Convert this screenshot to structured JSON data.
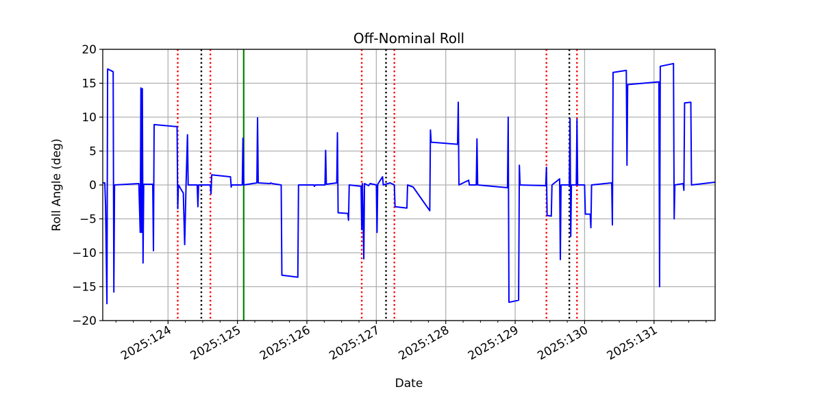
{
  "chart_data": {
    "type": "line",
    "title": "Off-Nominal Roll",
    "xlabel": "Date",
    "ylabel": "Roll Angle (deg)",
    "xlim": [
      123.06,
      131.88
    ],
    "ylim": [
      -20,
      20
    ],
    "grid": true,
    "x_ticks": [
      {
        "value": 124,
        "label": "2025:124"
      },
      {
        "value": 125,
        "label": "2025:125"
      },
      {
        "value": 126,
        "label": "2025:126"
      },
      {
        "value": 127,
        "label": "2025:127"
      },
      {
        "value": 128,
        "label": "2025:128"
      },
      {
        "value": 129,
        "label": "2025:129"
      },
      {
        "value": 130,
        "label": "2025:130"
      },
      {
        "value": 131,
        "label": "2025:131"
      }
    ],
    "y_ticks": [
      -20,
      -15,
      -10,
      -5,
      0,
      5,
      10,
      15,
      20
    ],
    "vertical_lines": [
      {
        "x": 124.14,
        "color": "#ff0000",
        "style": "dotted"
      },
      {
        "x": 124.48,
        "color": "#000000",
        "style": "dotted"
      },
      {
        "x": 124.61,
        "color": "#ff0000",
        "style": "dotted"
      },
      {
        "x": 125.09,
        "color": "#008000",
        "style": "solid"
      },
      {
        "x": 126.79,
        "color": "#ff0000",
        "style": "dotted"
      },
      {
        "x": 127.14,
        "color": "#000000",
        "style": "dotted"
      },
      {
        "x": 127.26,
        "color": "#ff0000",
        "style": "dotted"
      },
      {
        "x": 129.45,
        "color": "#ff0000",
        "style": "dotted"
      },
      {
        "x": 129.78,
        "color": "#000000",
        "style": "dotted"
      },
      {
        "x": 129.89,
        "color": "#ff0000",
        "style": "dotted"
      }
    ],
    "series": [
      {
        "color": "#0000ff",
        "points": [
          [
            123.06,
            0.3
          ],
          [
            123.09,
            0.3
          ],
          [
            123.1,
            -3
          ],
          [
            123.12,
            -17.5
          ],
          [
            123.13,
            17.1
          ],
          [
            123.21,
            16.7
          ],
          [
            123.22,
            -15.8
          ],
          [
            123.23,
            0
          ],
          [
            123.58,
            0.2
          ],
          [
            123.6,
            -7
          ],
          [
            123.61,
            14.3
          ],
          [
            123.62,
            -7
          ],
          [
            123.63,
            14.2
          ],
          [
            123.64,
            -11.5
          ],
          [
            123.65,
            0.1
          ],
          [
            123.78,
            0.1
          ],
          [
            123.79,
            -9.7
          ],
          [
            123.8,
            8.9
          ],
          [
            124.13,
            8.6
          ],
          [
            124.14,
            -3.5
          ],
          [
            124.15,
            0
          ],
          [
            124.22,
            -1.2
          ],
          [
            124.24,
            -8.8
          ],
          [
            124.26,
            0
          ],
          [
            124.28,
            7.4
          ],
          [
            124.29,
            0
          ],
          [
            124.42,
            0
          ],
          [
            124.43,
            -3.2
          ],
          [
            124.44,
            0
          ],
          [
            124.61,
            0
          ],
          [
            124.62,
            -1.3
          ],
          [
            124.63,
            1.5
          ],
          [
            124.9,
            1.2
          ],
          [
            124.91,
            -0.3
          ],
          [
            124.92,
            0
          ],
          [
            125.07,
            0
          ],
          [
            125.08,
            6.9
          ],
          [
            125.09,
            0
          ],
          [
            125.28,
            0.3
          ],
          [
            125.29,
            9.9
          ],
          [
            125.3,
            0.3
          ],
          [
            125.47,
            0.2
          ],
          [
            125.48,
            0.3
          ],
          [
            125.5,
            0.2
          ],
          [
            125.63,
            0
          ],
          [
            125.64,
            -13.3
          ],
          [
            125.87,
            -13.6
          ],
          [
            125.88,
            0
          ],
          [
            126.1,
            0
          ],
          [
            126.11,
            -0.2
          ],
          [
            126.12,
            0
          ],
          [
            126.26,
            0
          ],
          [
            126.27,
            5.1
          ],
          [
            126.28,
            0.1
          ],
          [
            126.43,
            0.3
          ],
          [
            126.44,
            7.7
          ],
          [
            126.45,
            -4.1
          ],
          [
            126.59,
            -4.2
          ],
          [
            126.6,
            -5.2
          ],
          [
            126.61,
            0
          ],
          [
            126.78,
            -0.2
          ],
          [
            126.79,
            -6.6
          ],
          [
            126.8,
            0.2
          ],
          [
            126.82,
            -10.9
          ],
          [
            126.83,
            0.2
          ],
          [
            126.89,
            -0.1
          ],
          [
            126.91,
            0.2
          ],
          [
            127.0,
            0
          ],
          [
            127.01,
            -7
          ],
          [
            127.02,
            0.1
          ],
          [
            127.09,
            1.2
          ],
          [
            127.1,
            0
          ],
          [
            127.2,
            0.3
          ],
          [
            127.26,
            0
          ],
          [
            127.27,
            -3.2
          ],
          [
            127.44,
            -3.4
          ],
          [
            127.45,
            0
          ],
          [
            127.53,
            -0.3
          ],
          [
            127.77,
            -3.8
          ],
          [
            127.78,
            8.1
          ],
          [
            127.79,
            6.3
          ],
          [
            128.17,
            6
          ],
          [
            128.18,
            12.2
          ],
          [
            128.19,
            0
          ],
          [
            128.33,
            0.7
          ],
          [
            128.34,
            0
          ],
          [
            128.44,
            0
          ],
          [
            128.45,
            6.8
          ],
          [
            128.46,
            0
          ],
          [
            128.89,
            -0.4
          ],
          [
            128.9,
            10
          ],
          [
            128.91,
            -17.3
          ],
          [
            129.05,
            -17
          ],
          [
            129.06,
            2.9
          ],
          [
            129.07,
            0
          ],
          [
            129.44,
            -0.1
          ],
          [
            129.45,
            2.6
          ],
          [
            129.46,
            -4.5
          ],
          [
            129.52,
            -4.6
          ],
          [
            129.53,
            0
          ],
          [
            129.64,
            0.9
          ],
          [
            129.65,
            -11
          ],
          [
            129.66,
            0
          ],
          [
            129.78,
            0
          ],
          [
            129.79,
            9.8
          ],
          [
            129.8,
            -7.6
          ],
          [
            129.81,
            0
          ],
          [
            129.88,
            0
          ],
          [
            129.89,
            9.7
          ],
          [
            129.9,
            0
          ],
          [
            130.0,
            0
          ],
          [
            130.01,
            -4.3
          ],
          [
            130.08,
            -4.3
          ],
          [
            130.09,
            -6.3
          ],
          [
            130.1,
            0
          ],
          [
            130.39,
            0.3
          ],
          [
            130.4,
            -5.9
          ],
          [
            130.41,
            16.6
          ],
          [
            130.6,
            16.9
          ],
          [
            130.61,
            2.9
          ],
          [
            130.62,
            14.8
          ],
          [
            131.07,
            15.2
          ],
          [
            131.08,
            -15
          ],
          [
            131.09,
            17.5
          ],
          [
            131.28,
            17.9
          ],
          [
            131.29,
            -5
          ],
          [
            131.3,
            0
          ],
          [
            131.42,
            0.2
          ],
          [
            131.43,
            -0.8
          ],
          [
            131.44,
            12.1
          ],
          [
            131.53,
            12.2
          ],
          [
            131.54,
            0
          ],
          [
            131.88,
            0.4
          ]
        ]
      }
    ]
  }
}
